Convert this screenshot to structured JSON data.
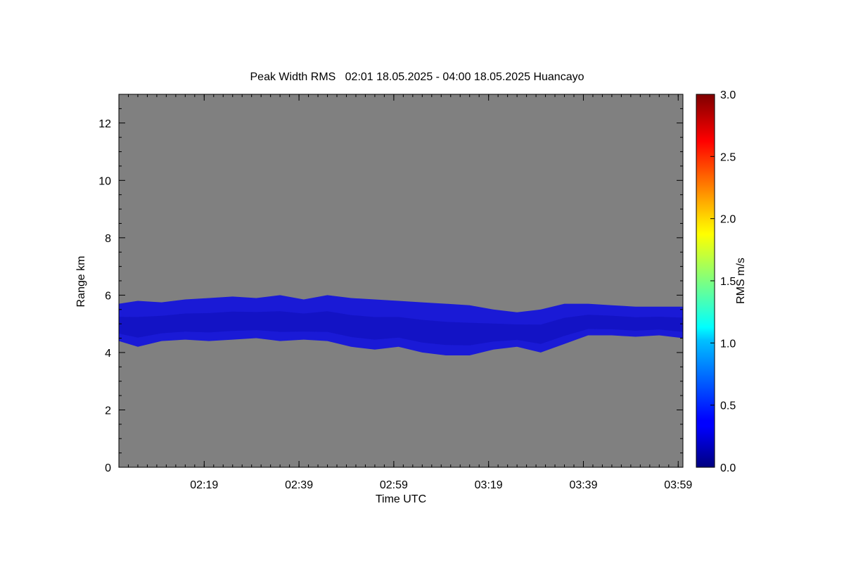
{
  "chart_data": {
    "type": "heatmap",
    "title": "Peak Width RMS   02:01 18.05.2025 - 04:00 18.05.2025 Huancayo",
    "xlabel": "Time UTC",
    "ylabel": "Range km",
    "colorbar_label": "RMS m/s",
    "x_range_min": [
      121,
      240
    ],
    "ylim": [
      0,
      13
    ],
    "colorbar_range": [
      0,
      3
    ],
    "x_ticks": [
      {
        "min": 139,
        "label": "02:19"
      },
      {
        "min": 159,
        "label": "02:39"
      },
      {
        "min": 179,
        "label": "02:59"
      },
      {
        "min": 199,
        "label": "03:19"
      },
      {
        "min": 219,
        "label": "03:39"
      },
      {
        "min": 239,
        "label": "03:59"
      }
    ],
    "y_ticks": [
      0,
      2,
      4,
      6,
      8,
      10,
      12
    ],
    "colorbar_ticks": [
      "0.0",
      "0.5",
      "1.0",
      "1.5",
      "2.0",
      "2.5",
      "3.0"
    ],
    "background_color": "#808080",
    "layer_color": "#1a1ad6",
    "layer": {
      "x": [
        121,
        125,
        130,
        135,
        140,
        145,
        150,
        155,
        160,
        165,
        170,
        175,
        180,
        185,
        190,
        195,
        200,
        205,
        210,
        215,
        220,
        225,
        230,
        235,
        240
      ],
      "top": [
        5.7,
        5.8,
        5.75,
        5.85,
        5.9,
        5.95,
        5.9,
        6.0,
        5.85,
        6.0,
        5.9,
        5.85,
        5.8,
        5.75,
        5.7,
        5.65,
        5.5,
        5.4,
        5.5,
        5.7,
        5.7,
        5.65,
        5.6,
        5.6,
        5.6
      ],
      "bottom": [
        4.4,
        4.2,
        4.4,
        4.45,
        4.4,
        4.45,
        4.5,
        4.4,
        4.45,
        4.4,
        4.2,
        4.1,
        4.2,
        4.0,
        3.9,
        3.9,
        4.1,
        4.2,
        4.0,
        4.3,
        4.6,
        4.6,
        4.55,
        4.6,
        4.5
      ]
    }
  }
}
